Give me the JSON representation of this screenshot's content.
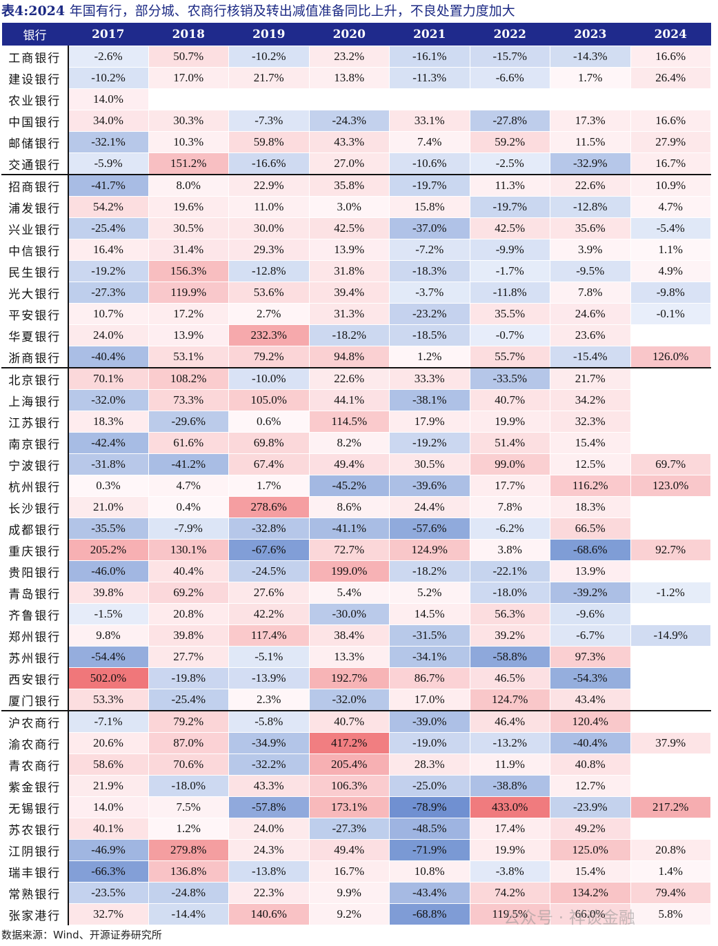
{
  "title": {
    "label": "表4:",
    "year": "2024",
    "text": "年国有行，部分城、农商行核销及转出减值准备同比上升，不良处置力度加大"
  },
  "header": {
    "bank_label": "银行",
    "years": [
      "2017",
      "2018",
      "2019",
      "2020",
      "2021",
      "2022",
      "2023",
      "2024"
    ]
  },
  "groups": [
    {
      "rows": [
        {
          "bank": "工商银行",
          "values": [
            "-2.6%",
            "50.7%",
            "-10.2%",
            "23.2%",
            "-16.1%",
            "-15.7%",
            "-14.3%",
            "16.6%"
          ]
        },
        {
          "bank": "建设银行",
          "values": [
            "-10.2%",
            "17.0%",
            "21.7%",
            "13.8%",
            "-11.3%",
            "-6.6%",
            "1.7%",
            "26.4%"
          ]
        },
        {
          "bank": "农业银行",
          "values": [
            "14.0%",
            "",
            "",
            "",
            "",
            "",
            "",
            ""
          ]
        },
        {
          "bank": "中国银行",
          "values": [
            "34.0%",
            "30.3%",
            "-7.3%",
            "-24.3%",
            "33.1%",
            "-27.8%",
            "17.3%",
            "16.6%"
          ]
        },
        {
          "bank": "邮储银行",
          "values": [
            "-32.1%",
            "10.3%",
            "59.8%",
            "43.3%",
            "7.4%",
            "59.2%",
            "11.5%",
            "27.9%"
          ]
        },
        {
          "bank": "交通银行",
          "values": [
            "-5.9%",
            "151.2%",
            "-16.6%",
            "27.0%",
            "-10.6%",
            "-2.5%",
            "-32.9%",
            "16.7%"
          ]
        }
      ]
    },
    {
      "rows": [
        {
          "bank": "招商银行",
          "values": [
            "-41.7%",
            "8.0%",
            "22.9%",
            "35.8%",
            "-19.7%",
            "11.3%",
            "22.6%",
            "10.9%"
          ]
        },
        {
          "bank": "浦发银行",
          "values": [
            "54.2%",
            "19.6%",
            "11.0%",
            "3.0%",
            "15.8%",
            "-19.7%",
            "-12.8%",
            "4.7%"
          ]
        },
        {
          "bank": "兴业银行",
          "values": [
            "-25.4%",
            "30.5%",
            "30.0%",
            "42.5%",
            "-37.0%",
            "42.5%",
            "35.6%",
            "-5.4%"
          ]
        },
        {
          "bank": "中信银行",
          "values": [
            "16.4%",
            "31.4%",
            "29.3%",
            "13.9%",
            "-7.2%",
            "-9.9%",
            "3.9%",
            "1.1%"
          ]
        },
        {
          "bank": "民生银行",
          "values": [
            "-19.2%",
            "156.3%",
            "-12.8%",
            "31.8%",
            "-18.3%",
            "-1.7%",
            "-9.5%",
            "4.9%"
          ]
        },
        {
          "bank": "光大银行",
          "values": [
            "-27.3%",
            "119.9%",
            "53.6%",
            "39.4%",
            "-3.7%",
            "-11.8%",
            "7.8%",
            "-9.8%"
          ]
        },
        {
          "bank": "平安银行",
          "values": [
            "10.7%",
            "17.2%",
            "2.7%",
            "31.3%",
            "-23.2%",
            "35.5%",
            "24.6%",
            "-0.1%"
          ]
        },
        {
          "bank": "华夏银行",
          "values": [
            "24.0%",
            "13.9%",
            "232.3%",
            "-18.2%",
            "-18.5%",
            "-0.7%",
            "23.6%",
            ""
          ]
        },
        {
          "bank": "浙商银行",
          "values": [
            "-40.4%",
            "53.1%",
            "79.2%",
            "94.8%",
            "1.2%",
            "55.7%",
            "-15.4%",
            "126.0%"
          ]
        }
      ]
    },
    {
      "rows": [
        {
          "bank": "北京银行",
          "values": [
            "70.1%",
            "108.2%",
            "-10.0%",
            "22.6%",
            "33.3%",
            "-33.5%",
            "21.7%",
            ""
          ]
        },
        {
          "bank": "上海银行",
          "values": [
            "-32.0%",
            "73.3%",
            "105.0%",
            "44.1%",
            "-38.1%",
            "40.7%",
            "34.2%",
            ""
          ]
        },
        {
          "bank": "江苏银行",
          "values": [
            "18.3%",
            "-29.6%",
            "0.6%",
            "114.5%",
            "17.9%",
            "19.9%",
            "32.3%",
            ""
          ]
        },
        {
          "bank": "南京银行",
          "values": [
            "-42.4%",
            "61.6%",
            "69.8%",
            "8.2%",
            "-19.2%",
            "51.4%",
            "15.4%",
            ""
          ]
        },
        {
          "bank": "宁波银行",
          "values": [
            "-31.8%",
            "-41.2%",
            "67.4%",
            "49.4%",
            "30.5%",
            "99.0%",
            "12.5%",
            "69.7%"
          ]
        },
        {
          "bank": "杭州银行",
          "values": [
            "0.3%",
            "4.7%",
            "1.7%",
            "-45.2%",
            "-39.6%",
            "17.7%",
            "116.2%",
            "123.0%"
          ]
        },
        {
          "bank": "长沙银行",
          "values": [
            "21.0%",
            "0.4%",
            "278.6%",
            "8.6%",
            "24.4%",
            "7.8%",
            "18.3%",
            ""
          ]
        },
        {
          "bank": "成都银行",
          "values": [
            "-35.5%",
            "-7.9%",
            "-32.8%",
            "-41.1%",
            "-57.6%",
            "-6.2%",
            "66.5%",
            ""
          ]
        },
        {
          "bank": "重庆银行",
          "values": [
            "205.2%",
            "130.1%",
            "-67.6%",
            "72.7%",
            "124.9%",
            "3.8%",
            "-68.6%",
            "92.7%"
          ]
        },
        {
          "bank": "贵阳银行",
          "values": [
            "-46.0%",
            "40.4%",
            "-24.5%",
            "199.0%",
            "-18.2%",
            "-22.1%",
            "13.9%",
            ""
          ]
        },
        {
          "bank": "青岛银行",
          "values": [
            "39.8%",
            "69.2%",
            "27.6%",
            "5.4%",
            "5.2%",
            "-18.0%",
            "-39.2%",
            "-1.2%"
          ]
        },
        {
          "bank": "齐鲁银行",
          "values": [
            "-1.5%",
            "20.8%",
            "42.2%",
            "-30.0%",
            "14.5%",
            "56.3%",
            "-9.6%",
            ""
          ]
        },
        {
          "bank": "郑州银行",
          "values": [
            "9.8%",
            "39.8%",
            "117.4%",
            "38.4%",
            "-31.5%",
            "39.2%",
            "-6.7%",
            "-14.9%"
          ]
        },
        {
          "bank": "苏州银行",
          "values": [
            "-54.4%",
            "27.7%",
            "-5.1%",
            "13.3%",
            "-34.1%",
            "-58.8%",
            "97.3%",
            ""
          ]
        },
        {
          "bank": "西安银行",
          "values": [
            "502.0%",
            "-19.8%",
            "-13.9%",
            "192.7%",
            "86.7%",
            "46.5%",
            "-54.3%",
            ""
          ]
        },
        {
          "bank": "厦门银行",
          "values": [
            "53.3%",
            "-25.4%",
            "2.3%",
            "-32.0%",
            "17.0%",
            "124.7%",
            "43.4%",
            ""
          ]
        }
      ]
    },
    {
      "rows": [
        {
          "bank": "沪农商行",
          "values": [
            "-7.1%",
            "79.2%",
            "-5.8%",
            "40.7%",
            "-39.0%",
            "46.4%",
            "120.4%",
            ""
          ]
        },
        {
          "bank": "渝农商行",
          "values": [
            "20.6%",
            "87.0%",
            "-34.9%",
            "417.2%",
            "-19.0%",
            "-13.2%",
            "-40.4%",
            "37.9%"
          ]
        },
        {
          "bank": "青农商行",
          "values": [
            "58.6%",
            "70.6%",
            "-32.2%",
            "205.4%",
            "28.3%",
            "11.9%",
            "40.8%",
            ""
          ]
        },
        {
          "bank": "紫金银行",
          "values": [
            "21.9%",
            "-18.0%",
            "43.3%",
            "106.3%",
            "-25.0%",
            "-38.8%",
            "12.7%",
            ""
          ]
        },
        {
          "bank": "无锡银行",
          "values": [
            "14.0%",
            "7.5%",
            "-57.8%",
            "173.1%",
            "-78.9%",
            "433.0%",
            "-23.9%",
            "217.2%"
          ]
        },
        {
          "bank": "苏农银行",
          "values": [
            "40.1%",
            "1.2%",
            "24.0%",
            "-27.3%",
            "-48.5%",
            "17.4%",
            "49.2%",
            ""
          ]
        },
        {
          "bank": "江阴银行",
          "values": [
            "-46.9%",
            "279.8%",
            "24.3%",
            "49.4%",
            "-71.9%",
            "19.9%",
            "125.0%",
            "20.8%"
          ]
        },
        {
          "bank": "瑞丰银行",
          "values": [
            "-66.3%",
            "136.8%",
            "-13.8%",
            "16.7%",
            "10.8%",
            "-3.8%",
            "15.4%",
            "1.4%"
          ]
        },
        {
          "bank": "常熟银行",
          "values": [
            "-23.5%",
            "-24.8%",
            "22.3%",
            "9.9%",
            "-43.4%",
            "74.2%",
            "134.2%",
            "79.4%"
          ]
        },
        {
          "bank": "张家港行",
          "values": [
            "32.7%",
            "-14.4%",
            "140.6%",
            "9.2%",
            "-68.8%",
            "119.5%",
            "66.0%",
            "5.8%"
          ]
        }
      ]
    }
  ],
  "source": "数据来源：Wind、开源证券研究所",
  "watermark": "公众号 · 祥谈金融",
  "colors": {
    "header_bg": "#1f2a8c",
    "neg_max": "#6e8fd0",
    "pos_max": "#f0777a"
  }
}
